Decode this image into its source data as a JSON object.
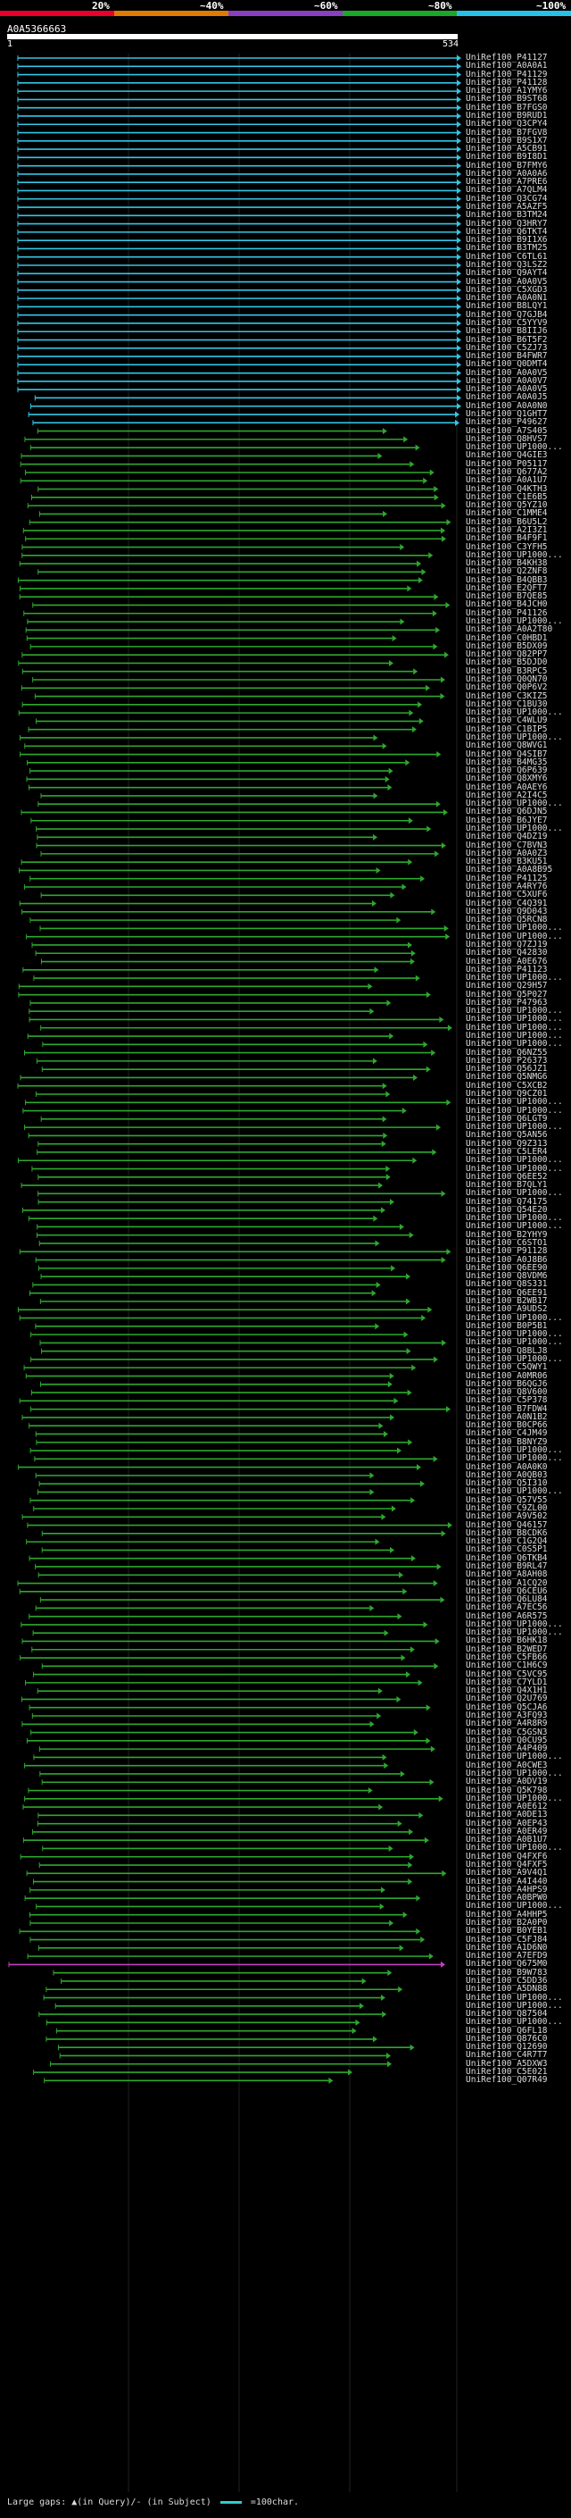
{
  "scale": {
    "labels": [
      "20%",
      "~40%",
      "~60%",
      "~80%",
      "~100%"
    ],
    "colors": [
      "#e8002b",
      "#e07a00",
      "#8a3fc0",
      "#1aa828",
      "#27c1e8"
    ]
  },
  "query": {
    "id": "A0A5366663",
    "start": "1",
    "end": "534"
  },
  "hits": {
    "cyan_labels": [
      "UniRef100_P41127",
      "UniRef100_A0A0A1",
      "UniRef100_P41129",
      "UniRef100_P41128",
      "UniRef100_A1YMY6",
      "UniRef100_B9ST68",
      "UniRef100_B7FGS0",
      "UniRef100_B9RUD1",
      "UniRef100_Q3CPY4",
      "UniRef100_B7FGV8",
      "UniRef100_B9S1X7",
      "UniRef100_A5CB91",
      "UniRef100_B9I8D1",
      "UniRef100_B7FMY6",
      "UniRef100_A0A0A6",
      "UniRef100_A7PRE6",
      "UniRef100_A7QLM4",
      "UniRef100_Q3CG74",
      "UniRef100_A5AZF5",
      "UniRef100_B3TM24",
      "UniRef100_Q3HRY7",
      "UniRef100_Q6TKT4",
      "UniRef100_B9I1X6",
      "UniRef100_B3TM25",
      "UniRef100_C6TL61",
      "UniRef100_Q3LSZ2",
      "UniRef100_Q9AYT4",
      "UniRef100_A0A0V5",
      "UniRef100_C5XGD3",
      "UniRef100_A0A0N1",
      "UniRef100_B8LQY1",
      "UniRef100_Q7GJB4",
      "UniRef100_C5YYV9",
      "UniRef100_B8IIJ6",
      "UniRef100_B6T5F2",
      "UniRef100_C5ZJ73",
      "UniRef100_B4FWR7",
      "UniRef100_Q0DMT4",
      "UniRef100_A0A0V5",
      "UniRef100_A0A0V7",
      "UniRef100_A0A0V5",
      "UniRef100_A0A0J5",
      "UniRef100_A0A0N0",
      "UniRef100_Q1GHT7",
      "UniRef100_P49627"
    ],
    "green_labels": [
      "UniRef100_A7S405",
      "UniRef100_Q8HVS7",
      "UniRef100_UP1000...",
      "UniRef100_Q4GIE3",
      "UniRef100_P05117",
      "UniRef100_Q677A2",
      "UniRef100_A0A1U7",
      "UniRef100_Q4KTH3",
      "UniRef100_C1E6B5",
      "UniRef100_Q5YZ10",
      "UniRef100_C1MME4",
      "UniRef100_B6U5L2",
      "UniRef100_A2I3Z1",
      "UniRef100_B4F9F1",
      "UniRef100_C3YFH5",
      "UniRef100_UP1000...",
      "UniRef100_B4KH38",
      "UniRef100_Q2ZNF8",
      "UniRef100_B4QBB3",
      "UniRef100_E2QFT7",
      "UniRef100_B7QE85",
      "UniRef100_B4JCH0",
      "UniRef100_P41126",
      "UniRef100_UP1000...",
      "UniRef100_A0A2T80",
      "UniRef100_C0HBD1",
      "UniRef100_B5DX09",
      "UniRef100_Q82PP7",
      "UniRef100_B5DJD0",
      "UniRef100_B3RPC5",
      "UniRef100_Q0QN70",
      "UniRef100_Q0P6V2",
      "UniRef100_C3KIZ5",
      "UniRef100_C1BU30",
      "UniRef100_UP1000...",
      "UniRef100_C4WLU9",
      "UniRef100_C1BIP5",
      "UniRef100_UP1000...",
      "UniRef100_Q8WVG1",
      "UniRef100_Q4SIB7",
      "UniRef100_B4MG35",
      "UniRef100_Q6P639",
      "UniRef100_Q8XMY6",
      "UniRef100_A0AEY6",
      "UniRef100_A2I4C5",
      "UniRef100_UP1000...",
      "UniRef100_Q6DJN5",
      "UniRef100_B6JYE7",
      "UniRef100_UP1000...",
      "UniRef100_Q4DZ19",
      "UniRef100_C7BVN3",
      "UniRef100_A0A0Z3",
      "UniRef100_B3KU51",
      "UniRef100_A0A8B95",
      "UniRef100_P41125",
      "UniRef100_A4RY76",
      "UniRef100_C5XUF6",
      "UniRef100_C4Q391",
      "UniRef100_Q9D043",
      "UniRef100_Q5RCN8",
      "UniRef100_UP1000...",
      "UniRef100_UP1000...",
      "UniRef100_Q7ZJ19",
      "UniRef100_Q42830",
      "UniRef100_A0E676",
      "UniRef100_P41123",
      "UniRef100_UP1000...",
      "UniRef100_Q29H57",
      "UniRef100_Q5P027",
      "UniRef100_P47963",
      "UniRef100_UP1000...",
      "UniRef100_UP1000...",
      "UniRef100_UP1000...",
      "UniRef100_UP1000...",
      "UniRef100_UP1000...",
      "UniRef100_Q6NZ55",
      "UniRef100_P26373",
      "UniRef100_Q56JZ1",
      "UniRef100_Q5NMG6",
      "UniRef100_C5XCB2",
      "UniRef100_Q9CZ01",
      "UniRef100_UP1000...",
      "UniRef100_UP1000...",
      "UniRef100_Q6LGT9",
      "UniRef100_UP1000...",
      "UniRef100_Q5AN56",
      "UniRef100_Q9Z313",
      "UniRef100_C5LER4",
      "UniRef100_UP1000...",
      "UniRef100_UP1000...",
      "UniRef100_Q6EE52",
      "UniRef100_B7QLY1",
      "UniRef100_UP1000...",
      "UniRef100_Q74175",
      "UniRef100_Q54E20",
      "UniRef100_UP1000...",
      "UniRef100_UP1000...",
      "UniRef100_B2YHY9",
      "UniRef100_C6STO1",
      "UniRef100_P91128",
      "UniRef100_A0J8B6",
      "UniRef100_Q6EE90",
      "UniRef100_Q8VDM6",
      "UniRef100_Q8S331",
      "UniRef100_Q6EE91",
      "UniRef100_B2WB17",
      "UniRef100_A9UDS2",
      "UniRef100_UP1000...",
      "UniRef100_B0P5B1",
      "UniRef100_UP1000...",
      "UniRef100_UP1000...",
      "UniRef100_Q8BLJ8",
      "UniRef100_UP1000...",
      "UniRef100_C5QWY1",
      "UniRef100_A0MR06",
      "UniRef100_B6QGJ6",
      "UniRef100_Q8V600",
      "UniRef100_C5P378",
      "UniRef100_B7FDW4",
      "UniRef100_A0N1B2",
      "UniRef100_B0CP66",
      "UniRef100_C4JM49",
      "UniRef100_B8NYZ9",
      "UniRef100_UP1000...",
      "UniRef100_UP1000...",
      "UniRef100_A0A0K0",
      "UniRef100_A0QB03",
      "UniRef100_Q5I310",
      "UniRef100_UP1000...",
      "UniRef100_Q57V55",
      "UniRef100_C9ZL00",
      "UniRef100_A9V502",
      "UniRef100_Q46157",
      "UniRef100_B8CDK6",
      "UniRef100_C1G2Q4",
      "UniRef100_C0S5P1",
      "UniRef100_Q6TKB4",
      "UniRef100_B9RL47",
      "UniRef100_A8AH08",
      "UniRef100_A1CQ20",
      "UniRef100_Q6CEU6",
      "UniRef100_Q6LU84",
      "UniRef100_A7EC56",
      "UniRef100_A6R575",
      "UniRef100_UP1000...",
      "UniRef100_UP1000...",
      "UniRef100_B6HK18",
      "UniRef100_B2WED7",
      "UniRef100_C5FB66",
      "UniRef100_C1H6C9",
      "UniRef100_C5VC95",
      "UniRef100_C7YLD1",
      "UniRef100_Q4X1H1",
      "UniRef100_Q2U769",
      "UniRef100_Q5CJA6",
      "UniRef100_A3FQ93",
      "UniRef100_A4R8R9",
      "UniRef100_C5GSN3",
      "UniRef100_Q0CU95",
      "UniRef100_A4P409",
      "UniRef100_UP1000...",
      "UniRef100_A0CWE3",
      "UniRef100_UP1000...",
      "UniRef100_A0DV19",
      "UniRef100_Q5K798",
      "UniRef100_UP1000...",
      "UniRef100_A0E612",
      "UniRef100_A0DE13",
      "UniRef100_A0EP43",
      "UniRef100_A0ER49",
      "UniRef100_A0B1U7",
      "UniRef100_UP1000...",
      "UniRef100_Q4FXF6",
      "UniRef100_Q4FXF5",
      "UniRef100_A9V4Q1",
      "UniRef100_A4I440",
      "UniRef100_A4HPS9",
      "UniRef100_A0BPW0",
      "UniRef100_UP1000...",
      "UniRef100_A4HHP5",
      "UniRef100_B2A0P0",
      "UniRef100_B0YEB1",
      "UniRef100_C5FJ84",
      "UniRef100_A1D6N0",
      "UniRef100_A7EFD9"
    ],
    "magenta_labels": [
      "UniRef100_Q675M0"
    ],
    "tail_labels": [
      "UniRef100_B9W783",
      "UniRef100_C5DD36",
      "UniRef100_A5DN88",
      "UniRef100_UP1000...",
      "UniRef100_UP1000...",
      "UniRef100_Q87504",
      "UniRef100_UP1000...",
      "UniRef100_Q6FL18",
      "UniRef100_Q876C0",
      "UniRef100_Q12690",
      "UniRef100_C4R7T7",
      "UniRef100_A5DXW3",
      "UniRef100_C5E021",
      "UniRef100_Q07R49"
    ]
  },
  "footer": {
    "text": "Large gaps: ▲(in Query)/- (in Subject)",
    "legend": "=100char."
  }
}
